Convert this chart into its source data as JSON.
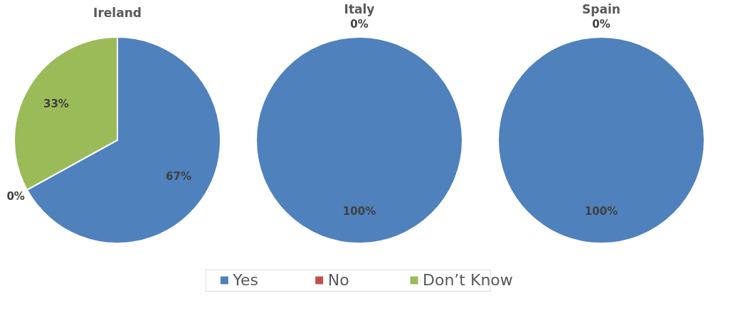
{
  "chart_data": [
    {
      "type": "pie",
      "title": "Ireland",
      "categories": [
        "Yes",
        "No",
        "Don’t Know"
      ],
      "values": [
        67,
        0,
        33
      ],
      "colors": [
        "#4f81bd",
        "#c0504d",
        "#9bbb59"
      ],
      "value_labels": [
        "67%",
        "0%",
        "33%"
      ],
      "legend": "bottom"
    },
    {
      "type": "pie",
      "title": "Italy",
      "categories": [
        null,
        null,
        null
      ],
      "values": [
        100,
        0,
        0
      ],
      "colors": [
        "#4f81bd",
        "#c0504d",
        "#9bbb59"
      ],
      "value_labels": [
        "100%",
        "0%",
        null
      ]
    },
    {
      "type": "pie",
      "title": "Spain",
      "categories": [
        null,
        null,
        null
      ],
      "values": [
        100,
        0,
        0
      ],
      "colors": [
        "#4f81bd",
        "#c0504d",
        "#9bbb59"
      ],
      "value_labels": [
        "100%",
        "0%",
        null
      ]
    }
  ]
}
